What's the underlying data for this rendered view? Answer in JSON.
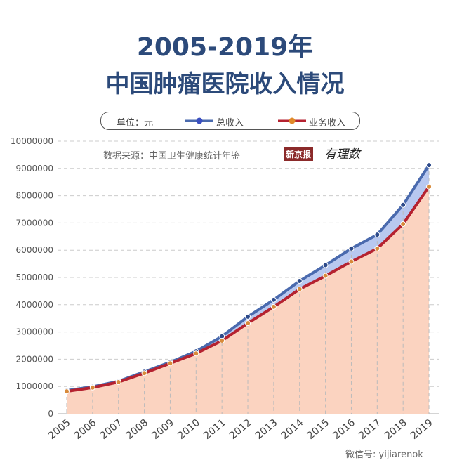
{
  "header": {
    "title_line1": "2005-2019年",
    "title_line2": "中国肿瘤医院收入情况"
  },
  "legend": {
    "unit": "单位：元",
    "total": "总收入",
    "business": "业务收入"
  },
  "source": "数据来源：中国卫生健康统计年鉴",
  "logo_xjb": "新京报",
  "logo_ylz": "有理数",
  "watermark": "微信号: yijiarenok",
  "chart_data": {
    "type": "line",
    "title": "2005-2019年 中国肿瘤医院收入情况",
    "ylim": [
      0,
      10000000
    ],
    "yticks": [
      0,
      1000000,
      2000000,
      3000000,
      4000000,
      5000000,
      6000000,
      7000000,
      8000000,
      9000000,
      10000000
    ],
    "categories": [
      "2005",
      "2006",
      "2007",
      "2008",
      "2009",
      "2010",
      "2011",
      "2012",
      "2013",
      "2014",
      "2015",
      "2016",
      "2017",
      "2018",
      "2019"
    ],
    "grid": true,
    "legend_position": "top",
    "series": [
      {
        "name": "总收入",
        "color": "#4a6aae",
        "fill": "#b8c8f0",
        "values": [
          850000,
          990000,
          1190000,
          1540000,
          1890000,
          2290000,
          2840000,
          3560000,
          4180000,
          4870000,
          5450000,
          6060000,
          6570000,
          7660000,
          9120000
        ]
      },
      {
        "name": "业务收入",
        "color": "#b52230",
        "fill": "#fbd3c0",
        "marker": "#d88a3a",
        "values": [
          820000,
          960000,
          1160000,
          1490000,
          1850000,
          2210000,
          2680000,
          3320000,
          3920000,
          4570000,
          5060000,
          5580000,
          6060000,
          6960000,
          8330000
        ]
      }
    ]
  }
}
